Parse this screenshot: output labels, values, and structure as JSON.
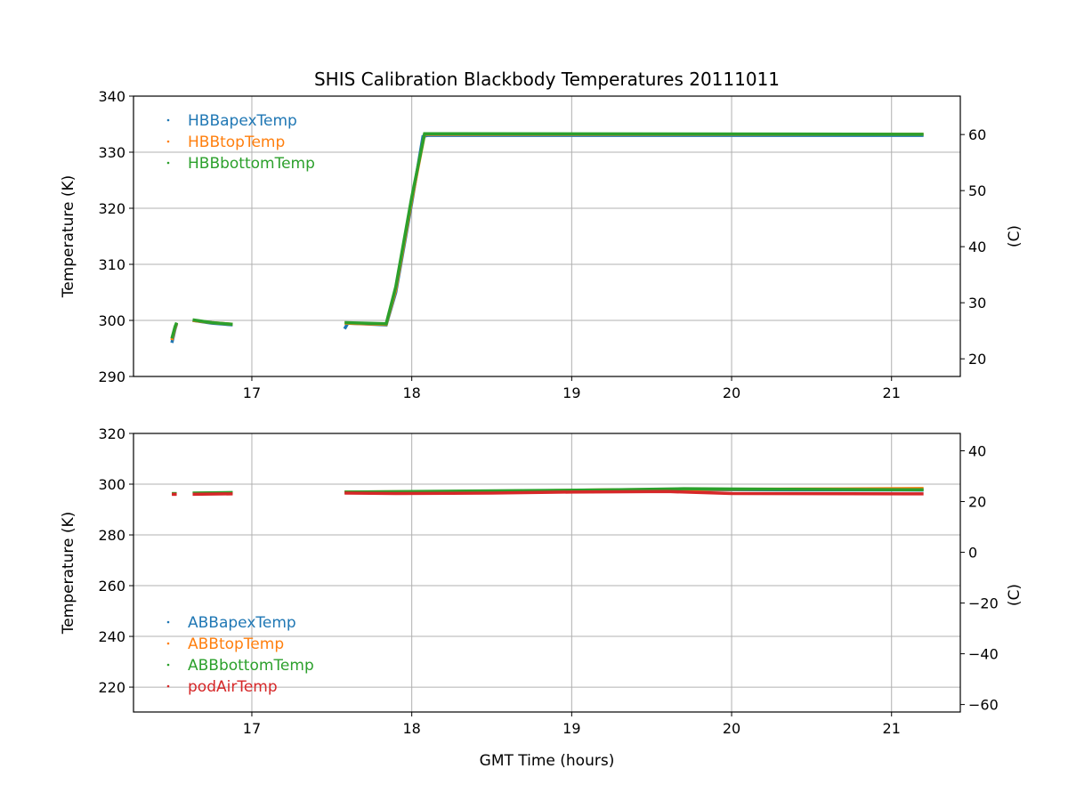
{
  "chart_data": [
    {
      "type": "line",
      "title": "SHIS Calibration Blackbody Temperatures 20111011",
      "xlabel": "",
      "ylabel": "Temperature (K)",
      "ylabel_right": "(C)",
      "xlim": [
        16.26,
        21.43
      ],
      "ylim": [
        290,
        340
      ],
      "xticks": [
        17,
        18,
        19,
        20,
        21
      ],
      "yticks": [
        290,
        300,
        310,
        320,
        330,
        340
      ],
      "yticks_right": [
        20,
        30,
        40,
        50,
        60
      ],
      "grid": true,
      "legend": "top-left",
      "series": [
        {
          "name": "HBBapexTemp",
          "color": "#1f77b4",
          "segments": [
            [
              [
                16.5,
                296
              ],
              [
                16.52,
                298.5
              ],
              [
                16.53,
                299.4
              ]
            ],
            [
              [
                16.63,
                300
              ],
              [
                16.75,
                299.5
              ],
              [
                16.88,
                299.2
              ]
            ],
            [
              [
                17.58,
                298.5
              ],
              [
                17.6,
                299.5
              ],
              [
                17.84,
                299.2
              ],
              [
                17.9,
                305
              ],
              [
                18.0,
                321
              ],
              [
                18.07,
                332.8
              ],
              [
                18.1,
                333
              ],
              [
                21.2,
                333
              ]
            ]
          ]
        },
        {
          "name": "HBBtopTemp",
          "color": "#ff7f0e",
          "segments": [
            [
              [
                16.5,
                296.5
              ],
              [
                16.52,
                298.7
              ],
              [
                16.53,
                299.5
              ]
            ],
            [
              [
                16.63,
                300
              ],
              [
                16.75,
                299.6
              ],
              [
                16.88,
                299.3
              ]
            ],
            [
              [
                17.58,
                299.5
              ],
              [
                17.84,
                299.3
              ],
              [
                17.9,
                305.5
              ],
              [
                18.0,
                321.5
              ],
              [
                18.08,
                333.2
              ],
              [
                21.2,
                333.2
              ]
            ]
          ]
        },
        {
          "name": "HBBbottomTemp",
          "color": "#2ca02c",
          "segments": [
            [
              [
                16.5,
                296.8
              ],
              [
                16.52,
                298.9
              ],
              [
                16.53,
                299.6
              ]
            ],
            [
              [
                16.63,
                300.1
              ],
              [
                16.75,
                299.6
              ],
              [
                16.88,
                299.3
              ]
            ],
            [
              [
                17.58,
                299.6
              ],
              [
                17.84,
                299.4
              ],
              [
                17.9,
                306
              ],
              [
                18.0,
                322
              ],
              [
                18.08,
                333.3
              ],
              [
                21.2,
                333.2
              ]
            ]
          ]
        }
      ]
    },
    {
      "type": "line",
      "title": "",
      "xlabel": "GMT Time (hours)",
      "ylabel": "Temperature (K)",
      "ylabel_right": "(C)",
      "xlim": [
        16.26,
        21.43
      ],
      "ylim": [
        210.2,
        320
      ],
      "xticks": [
        17,
        18,
        19,
        20,
        21
      ],
      "yticks": [
        220,
        240,
        260,
        280,
        300,
        320
      ],
      "yticks_right": [
        -60,
        -40,
        -20,
        0,
        20,
        40
      ],
      "grid": true,
      "legend": "bottom-left",
      "series": [
        {
          "name": "ABBapexTemp",
          "color": "#1f77b4",
          "segments": [
            [
              [
                16.5,
                296.2
              ],
              [
                16.53,
                296.2
              ]
            ],
            [
              [
                16.63,
                296.3
              ],
              [
                16.88,
                296.5
              ]
            ],
            [
              [
                17.58,
                296.8
              ],
              [
                18.5,
                297
              ],
              [
                19.3,
                297.6
              ],
              [
                20,
                297.8
              ],
              [
                21.2,
                297.7
              ]
            ]
          ]
        },
        {
          "name": "ABBtopTemp",
          "color": "#ff7f0e",
          "segments": [
            [
              [
                16.5,
                296.2
              ],
              [
                16.53,
                296.2
              ]
            ],
            [
              [
                16.63,
                296.4
              ],
              [
                16.88,
                296.6
              ]
            ],
            [
              [
                17.58,
                296.9
              ],
              [
                18.5,
                297.2
              ],
              [
                19.3,
                297.8
              ],
              [
                20,
                298
              ],
              [
                20.7,
                298.1
              ],
              [
                21.2,
                298.3
              ]
            ]
          ]
        },
        {
          "name": "ABBbottomTemp",
          "color": "#2ca02c",
          "segments": [
            [
              [
                16.5,
                296.3
              ],
              [
                16.53,
                296.3
              ]
            ],
            [
              [
                16.63,
                296.5
              ],
              [
                16.88,
                296.7
              ]
            ],
            [
              [
                17.58,
                296.9
              ],
              [
                18.6,
                297.4
              ],
              [
                19.3,
                297.8
              ],
              [
                19.7,
                298.2
              ],
              [
                20.3,
                298
              ],
              [
                21.2,
                297.8
              ]
            ]
          ]
        },
        {
          "name": "podAirTemp",
          "color": "#d62728",
          "segments": [
            [
              [
                16.5,
                296
              ],
              [
                16.53,
                296
              ]
            ],
            [
              [
                16.63,
                296
              ],
              [
                16.88,
                296.2
              ]
            ],
            [
              [
                17.58,
                296.5
              ],
              [
                17.9,
                296.3
              ],
              [
                18.5,
                296.5
              ],
              [
                19,
                296.9
              ],
              [
                19.6,
                297.1
              ],
              [
                20,
                296.3
              ],
              [
                21.2,
                296.2
              ]
            ]
          ]
        }
      ]
    }
  ]
}
